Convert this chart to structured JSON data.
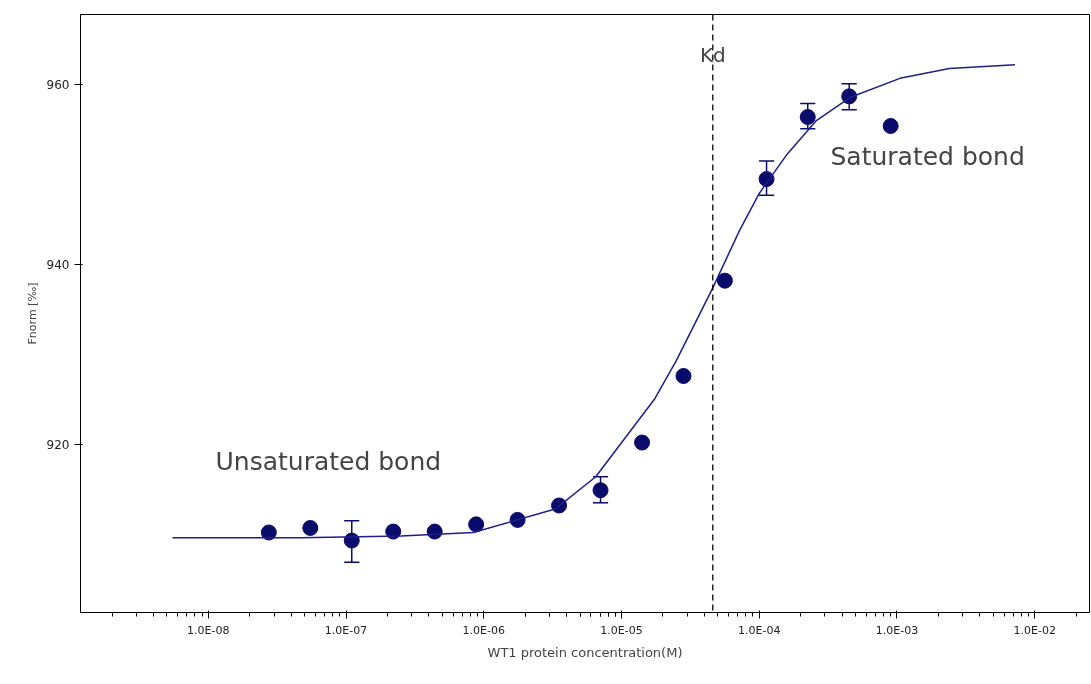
{
  "chart_data": {
    "type": "scatter",
    "xlabel": "WT1 protein concentration(M)",
    "ylabel": "Fnorm [‰]",
    "log": "x",
    "grid": false,
    "marker": "circle",
    "xlim": [
      1.18e-09,
      0.025
    ],
    "ylim": [
      901.3,
      967.8
    ],
    "xticks": [
      {
        "value": 1e-08,
        "label": "1.0E-08"
      },
      {
        "value": 1e-07,
        "label": "1.0E-07"
      },
      {
        "value": 1e-06,
        "label": "1.0E-06"
      },
      {
        "value": 1e-05,
        "label": "1.0E-05"
      },
      {
        "value": 0.0001,
        "label": "1.0E-04"
      },
      {
        "value": 0.001,
        "label": "1.0E-03"
      },
      {
        "value": 0.01,
        "label": "1.0E-02"
      }
    ],
    "yticks": [
      920,
      940,
      960
    ],
    "series": [
      {
        "color": "#0b0b6b",
        "x": [
          2.75e-08,
          5.5e-08,
          1.1e-07,
          2.2e-07,
          4.4e-07,
          8.8e-07,
          1.76e-06,
          3.52e-06,
          7.04e-06,
          1.41e-05,
          2.82e-05,
          5.63e-05,
          0.000113,
          0.000225,
          0.00045,
          0.0009
        ],
        "values": [
          910.2,
          910.7,
          909.3,
          910.3,
          910.3,
          911.1,
          911.6,
          913.2,
          914.9,
          920.2,
          927.6,
          938.2,
          949.5,
          956.4,
          958.7,
          955.4
        ],
        "errors": [
          null,
          null,
          [
            906.9,
            911.5
          ],
          null,
          null,
          null,
          null,
          null,
          [
            913.5,
            916.4
          ],
          null,
          null,
          null,
          [
            947.7,
            951.5
          ],
          [
            955.1,
            957.9
          ],
          [
            957.2,
            960.1
          ],
          null
        ]
      },
      {
        "type": "line",
        "color": "#1f1f8a",
        "line_style": "solid",
        "marker": "none",
        "x": [
          5.5e-09,
          4.7e-08,
          2.5e-07,
          8.4e-07,
          3.3e-06,
          6.5e-06,
          1.75e-05,
          2.5e-05,
          4.6e-05,
          7.2e-05,
          0.0001,
          0.00016,
          0.00026,
          0.00046,
          0.00105,
          0.0024,
          0.0072
        ],
        "values": [
          909.6,
          909.6,
          909.8,
          910.2,
          912.8,
          916.4,
          925.1,
          929.3,
          937.4,
          943.8,
          947.9,
          952.3,
          956.0,
          958.6,
          960.7,
          961.8,
          962.2
        ]
      }
    ],
    "ref_lines": [
      {
        "axis": "x",
        "value": 4.6e-05,
        "label": "Kd",
        "color": "#000000",
        "line_style": "dashed"
      }
    ],
    "annotations": [
      "Unsaturated bond",
      "Saturated bond"
    ]
  }
}
